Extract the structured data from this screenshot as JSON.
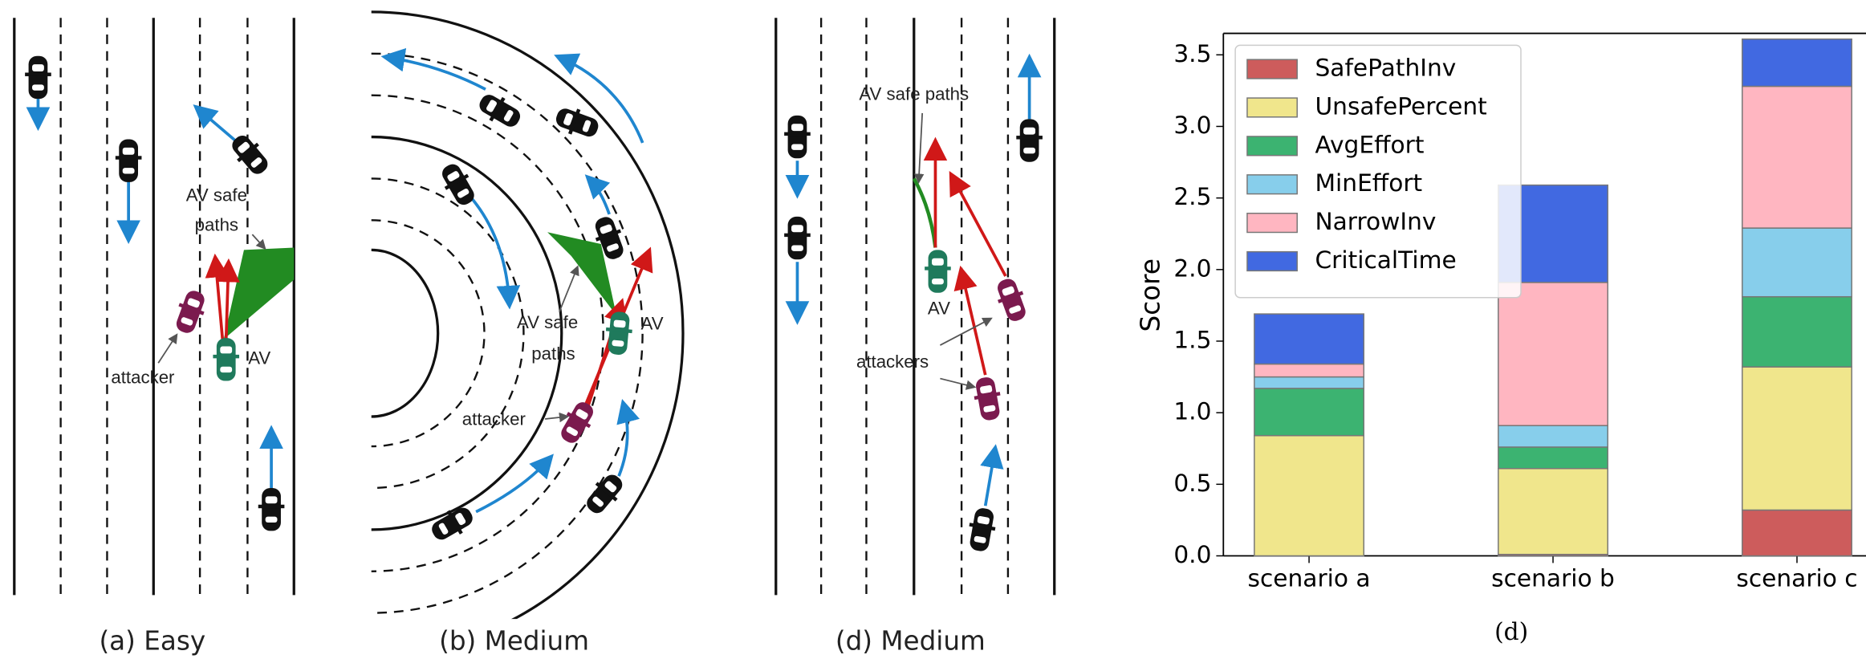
{
  "panels": [
    {
      "caption": "(a) Easy",
      "labels": [
        "AV safe",
        "paths",
        "attacker",
        "AV"
      ]
    },
    {
      "caption": "(b) Medium",
      "labels": [
        "AV safe",
        "paths",
        "AV",
        "attacker"
      ]
    },
    {
      "caption": "(d) Medium",
      "labels": [
        "AV safe paths",
        "AV",
        "attackers"
      ]
    }
  ],
  "chart_data": {
    "type": "stacked-bar",
    "caption": "(d)",
    "y_label": "Score",
    "categories": [
      "scenario a",
      "scenario b",
      "scenario c"
    ],
    "series": [
      {
        "name": "SafePathInv",
        "color": "#cd5c5c",
        "values": [
          0,
          0.01,
          0.32
        ]
      },
      {
        "name": "UnsafePercent",
        "color": "#f0e68c",
        "values": [
          0.84,
          0.6,
          1.0
        ]
      },
      {
        "name": "AvgEffort",
        "color": "#3cb371",
        "values": [
          0.33,
          0.15,
          0.49
        ]
      },
      {
        "name": "MinEffort",
        "color": "#87ceeb",
        "values": [
          0.08,
          0.15,
          0.48
        ]
      },
      {
        "name": "NarrowInv",
        "color": "#ffb6c1",
        "values": [
          0.09,
          1.0,
          0.99
        ]
      },
      {
        "name": "CriticalTime",
        "color": "#4169e1",
        "values": [
          0.35,
          0.68,
          0.33
        ]
      }
    ],
    "ylim": [
      0,
      3.65
    ],
    "yticks": [
      {
        "value": 0,
        "label": "0.0"
      },
      0.5,
      {
        "value": 1,
        "label": "1.0"
      },
      1.5,
      {
        "value": 2,
        "label": "2.0"
      },
      2.5,
      {
        "value": 3,
        "label": "3.0"
      },
      3.5
    ],
    "legend": "upper left"
  }
}
